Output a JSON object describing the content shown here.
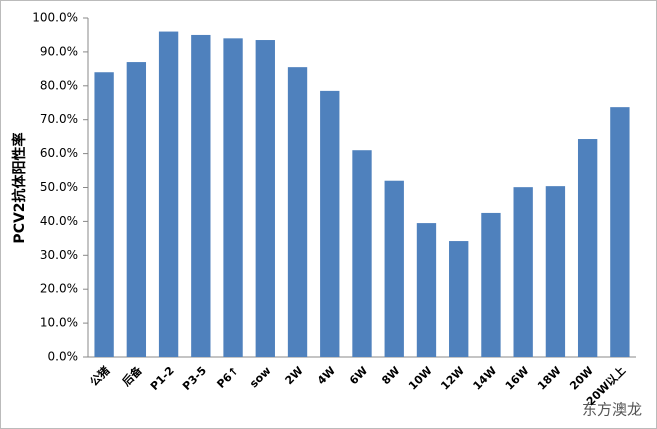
{
  "chart_data": {
    "type": "bar",
    "y_label": "PCV2抗体阳性率",
    "categories": [
      "公猪",
      "后备",
      "P1-2",
      "P3-5",
      "P6↑",
      "sow",
      "2W",
      "4W",
      "6W",
      "8W",
      "10W",
      "12W",
      "14W",
      "16W",
      "18W",
      "20W",
      "20W以上"
    ],
    "values": [
      84,
      87,
      96,
      95,
      94,
      93.5,
      85.5,
      78.5,
      61,
      52,
      39.5,
      34.2,
      42.5,
      50.1,
      50.4,
      64.3,
      73.7
    ],
    "color": "#4f81bd",
    "ylim": [
      0,
      100
    ],
    "yticks": [
      {
        "value": 0,
        "label": "0.0%"
      },
      {
        "value": 10,
        "label": "10.0%"
      },
      {
        "value": 20,
        "label": "20.0%"
      },
      {
        "value": 30,
        "label": "30.0%"
      },
      {
        "value": 40,
        "label": "40.0%"
      },
      {
        "value": 50,
        "label": "50.0%"
      },
      {
        "value": 60,
        "label": "60.0%"
      },
      {
        "value": 70,
        "label": "70.0%"
      },
      {
        "value": 80,
        "label": "80.0%"
      },
      {
        "value": 90,
        "label": "90.0%"
      },
      {
        "value": 100,
        "label": "100.0%"
      }
    ],
    "grid": false,
    "watermark": "东方澳龙"
  }
}
